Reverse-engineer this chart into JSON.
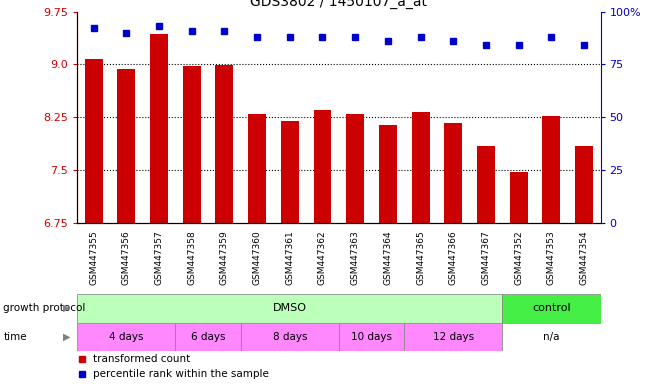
{
  "title": "GDS3802 / 1450107_a_at",
  "samples": [
    "GSM447355",
    "GSM447356",
    "GSM447357",
    "GSM447358",
    "GSM447359",
    "GSM447360",
    "GSM447361",
    "GSM447362",
    "GSM447363",
    "GSM447364",
    "GSM447365",
    "GSM447366",
    "GSM447367",
    "GSM447352",
    "GSM447353",
    "GSM447354"
  ],
  "bar_values": [
    9.07,
    8.93,
    9.43,
    8.98,
    8.99,
    8.3,
    8.19,
    8.35,
    8.3,
    8.14,
    8.32,
    8.17,
    7.84,
    7.47,
    8.26,
    7.84
  ],
  "dot_values": [
    92,
    90,
    93,
    91,
    91,
    88,
    88,
    88,
    88,
    86,
    88,
    86,
    84,
    84,
    88,
    84
  ],
  "bar_color": "#cc0000",
  "dot_color": "#0000cc",
  "ylim_left": [
    6.75,
    9.75
  ],
  "ylim_right": [
    0,
    100
  ],
  "yticks_left": [
    6.75,
    7.5,
    8.25,
    9.0,
    9.75
  ],
  "yticks_right": [
    0,
    25,
    50,
    75,
    100
  ],
  "ytick_labels_right": [
    "0",
    "25",
    "50",
    "75",
    "100%"
  ],
  "grid_values": [
    7.5,
    8.25,
    9.0
  ],
  "growth_protocol_label": "growth protocol",
  "time_label": "time",
  "dmso_color": "#bbffbb",
  "control_color": "#44ee44",
  "time_pink": "#ff88ff",
  "time_white": "#ffffff",
  "tick_bg_color": "#dddddd",
  "legend_items": [
    {
      "color": "#cc0000",
      "label": "transformed count"
    },
    {
      "color": "#0000cc",
      "label": "percentile rank within the sample"
    }
  ],
  "bg_color": "#ffffff"
}
